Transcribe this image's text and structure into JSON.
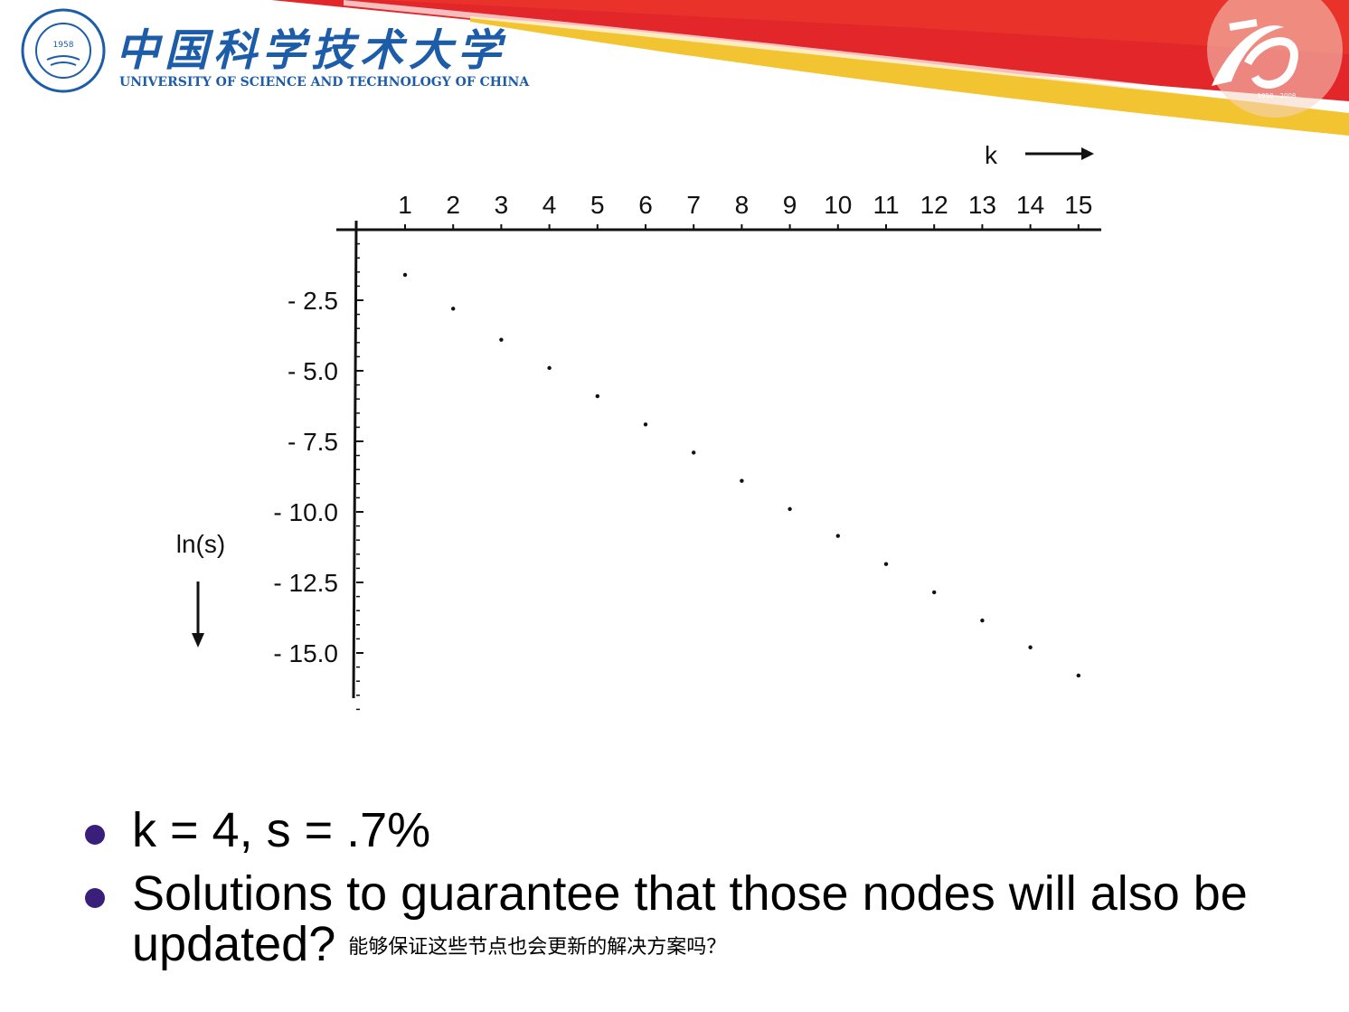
{
  "header": {
    "university_cn": "中国科学技术大学",
    "university_en": "UNIVERSITY OF SCIENCE AND TECHNOLOGY OF CHINA",
    "seal_year": "1958",
    "anniversary_years": "1958—2008",
    "brand_blue": "#1d5ca8",
    "brand_red": "#e2262a",
    "brand_yellow": "#f3c431"
  },
  "chart_data": {
    "type": "scatter",
    "title": "",
    "xlabel": "k",
    "ylabel": "ln(s)",
    "x_ticks": [
      "1",
      "2",
      "3",
      "4",
      "5",
      "6",
      "7",
      "8",
      "9",
      "10",
      "11",
      "12",
      "13",
      "14",
      "15"
    ],
    "y_ticks": [
      "- 2.5",
      "- 5.0",
      "- 7.5",
      "- 10.0",
      "- 12.5",
      "- 15.0"
    ],
    "y_tick_values": [
      -2.5,
      -5.0,
      -7.5,
      -10.0,
      -12.5,
      -15.0
    ],
    "xlim": [
      0,
      15.4
    ],
    "ylim": [
      -17.3,
      0
    ],
    "x_axis_position": "top",
    "y_axis_direction": "down",
    "grid": false,
    "series": [
      {
        "x": [
          1,
          2,
          3,
          4,
          5,
          6,
          7,
          8,
          9,
          10,
          11,
          12,
          13,
          14,
          15
        ],
        "y": [
          -1.6,
          -2.8,
          -3.9,
          -4.9,
          -5.9,
          -6.9,
          -7.9,
          -8.9,
          -9.9,
          -10.85,
          -11.85,
          -12.85,
          -13.85,
          -14.8,
          -15.8
        ]
      }
    ]
  },
  "bullets": [
    {
      "text": "k = 4, s = .7%"
    },
    {
      "text": "Solutions to guarantee that those nodes will also be updated?",
      "note": "能够保证这些节点也会更新的解决方案吗？"
    }
  ]
}
